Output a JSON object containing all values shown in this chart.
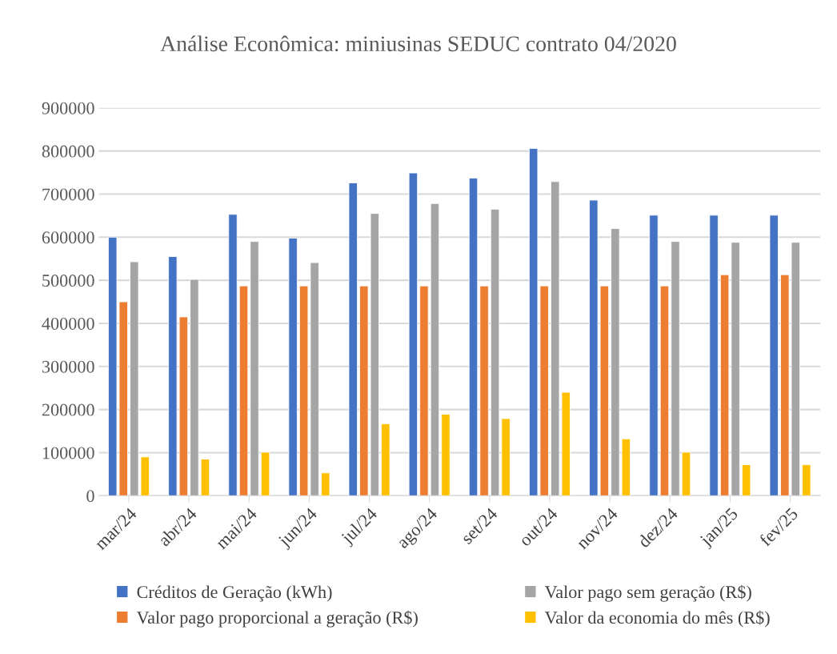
{
  "chart_data": {
    "type": "bar",
    "title": "Análise Econômica: miniusinas SEDUC contrato 04/2020",
    "categories": [
      "mar/24",
      "abr/24",
      "mai/24",
      "jun/24",
      "jul/24",
      "ago/24",
      "set/24",
      "out/24",
      "nov/24",
      "dez/24",
      "jan/25",
      "fev/25"
    ],
    "series": [
      {
        "name": "Créditos de Geração (kWh)",
        "color": "#4472c4",
        "values": [
          600000,
          555000,
          653000,
          598000,
          726000,
          749000,
          737000,
          806000,
          686000,
          651000,
          651000,
          651000
        ]
      },
      {
        "name": "Valor pago proporcional a geração (R$)",
        "color": "#ed7d31",
        "values": [
          450000,
          415000,
          487000,
          487000,
          487000,
          487000,
          487000,
          487000,
          487000,
          487000,
          513000,
          513000
        ]
      },
      {
        "name": "Valor pago sem geração (R$)",
        "color": "#a5a5a5",
        "values": [
          543000,
          502000,
          590000,
          541000,
          655000,
          678000,
          665000,
          729000,
          620000,
          590000,
          588000,
          588000
        ]
      },
      {
        "name": "Valor da economia do mês (R$)",
        "color": "#ffc000",
        "values": [
          90000,
          85000,
          101000,
          53000,
          167000,
          189000,
          179000,
          240000,
          132000,
          101000,
          72000,
          72000
        ]
      }
    ],
    "ylim": [
      0,
      900000
    ],
    "yticks": [
      0,
      100000,
      200000,
      300000,
      400000,
      500000,
      600000,
      700000,
      800000,
      900000
    ],
    "grid": "y",
    "legend": "bottom"
  }
}
